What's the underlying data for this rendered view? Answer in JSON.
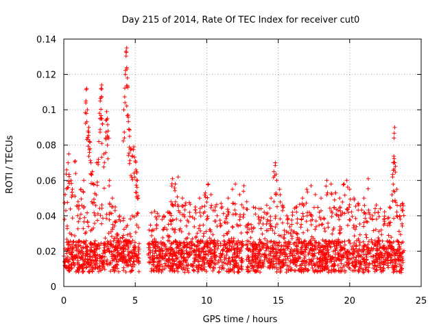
{
  "colors": {
    "series": "#ff0000",
    "grid": "#a0a0a0",
    "axis": "#000000"
  },
  "chart_data": {
    "type": "scatter",
    "title": "Day 215 of 2014, Rate Of TEC Index for receiver cut0",
    "xlabel": "GPS time / hours",
    "ylabel": "ROTI / TECUs",
    "xlim": [
      0,
      25
    ],
    "ylim": [
      0,
      0.14
    ],
    "grid": true,
    "marker": "+",
    "xticks": [
      0,
      5,
      10,
      15,
      20,
      25
    ],
    "yticks": [
      0,
      0.02,
      0.04,
      0.06,
      0.08,
      0.1,
      0.12,
      0.14
    ],
    "xtick_labels": [
      "0",
      "5",
      "10",
      "15",
      "20",
      "25"
    ],
    "ytick_labels": [
      "0",
      "0.02",
      "0.04",
      "0.06",
      "0.08",
      "0.1",
      "0.12",
      "0.14"
    ],
    "series": [
      {
        "name": "ROTI",
        "points": [
          [
            0.1,
            0.052
          ],
          [
            0.2,
            0.066
          ],
          [
            0.3,
            0.07
          ],
          [
            0.35,
            0.075
          ],
          [
            0.5,
            0.06
          ],
          [
            0.6,
            0.055
          ],
          [
            0.8,
            0.071
          ],
          [
            1.0,
            0.048
          ],
          [
            1.2,
            0.055
          ],
          [
            1.4,
            0.06
          ],
          [
            1.55,
            0.105
          ],
          [
            1.6,
            0.112
          ],
          [
            1.65,
            0.1
          ],
          [
            1.7,
            0.088
          ],
          [
            1.75,
            0.09
          ],
          [
            1.8,
            0.082
          ],
          [
            1.9,
            0.07
          ],
          [
            2.0,
            0.065
          ],
          [
            2.1,
            0.058
          ],
          [
            2.3,
            0.07
          ],
          [
            2.45,
            0.082
          ],
          [
            2.5,
            0.098
          ],
          [
            2.55,
            0.105
          ],
          [
            2.6,
            0.112
          ],
          [
            2.65,
            0.114
          ],
          [
            2.7,
            0.092
          ],
          [
            2.8,
            0.075
          ],
          [
            2.95,
            0.094
          ],
          [
            3.0,
            0.099
          ],
          [
            3.05,
            0.095
          ],
          [
            3.1,
            0.088
          ],
          [
            3.2,
            0.06
          ],
          [
            3.4,
            0.05
          ],
          [
            3.6,
            0.045
          ],
          [
            3.9,
            0.04
          ],
          [
            4.2,
            0.1
          ],
          [
            4.3,
            0.12
          ],
          [
            4.35,
            0.133
          ],
          [
            4.4,
            0.135
          ],
          [
            4.45,
            0.118
          ],
          [
            4.5,
            0.097
          ],
          [
            4.55,
            0.089
          ],
          [
            4.6,
            0.085
          ],
          [
            4.7,
            0.078
          ],
          [
            4.8,
            0.074
          ],
          [
            4.9,
            0.079
          ],
          [
            5.0,
            0.071
          ],
          [
            5.05,
            0.066
          ],
          [
            5.1,
            0.065
          ],
          [
            5.15,
            0.06
          ],
          [
            5.2,
            0.05
          ],
          [
            6.2,
            0.032
          ],
          [
            6.5,
            0.035
          ],
          [
            7.0,
            0.04
          ],
          [
            7.5,
            0.048
          ],
          [
            7.6,
            0.061
          ],
          [
            7.8,
            0.058
          ],
          [
            8.0,
            0.062
          ],
          [
            8.3,
            0.05
          ],
          [
            8.5,
            0.046
          ],
          [
            8.8,
            0.042
          ],
          [
            9.2,
            0.045
          ],
          [
            9.5,
            0.05
          ],
          [
            9.9,
            0.053
          ],
          [
            10.1,
            0.058
          ],
          [
            10.3,
            0.052
          ],
          [
            10.6,
            0.045
          ],
          [
            11.0,
            0.047
          ],
          [
            11.5,
            0.05
          ],
          [
            11.8,
            0.055
          ],
          [
            12.0,
            0.058
          ],
          [
            12.3,
            0.052
          ],
          [
            12.6,
            0.057
          ],
          [
            12.8,
            0.048
          ],
          [
            13.1,
            0.035
          ],
          [
            13.4,
            0.041
          ],
          [
            13.8,
            0.044
          ],
          [
            14.2,
            0.046
          ],
          [
            14.5,
            0.05
          ],
          [
            14.7,
            0.065
          ],
          [
            14.8,
            0.07
          ],
          [
            14.9,
            0.06
          ],
          [
            15.1,
            0.055
          ],
          [
            15.3,
            0.046
          ],
          [
            15.6,
            0.04
          ],
          [
            16.0,
            0.042
          ],
          [
            16.3,
            0.045
          ],
          [
            16.7,
            0.05
          ],
          [
            17.0,
            0.055
          ],
          [
            17.3,
            0.057
          ],
          [
            17.6,
            0.052
          ],
          [
            18.0,
            0.05
          ],
          [
            18.4,
            0.06
          ],
          [
            18.7,
            0.058
          ],
          [
            19.0,
            0.053
          ],
          [
            19.3,
            0.05
          ],
          [
            19.6,
            0.058
          ],
          [
            19.8,
            0.06
          ],
          [
            20.0,
            0.055
          ],
          [
            20.3,
            0.05
          ],
          [
            20.6,
            0.047
          ],
          [
            21.0,
            0.05
          ],
          [
            21.3,
            0.061
          ],
          [
            21.6,
            0.04
          ],
          [
            22.0,
            0.042
          ],
          [
            22.4,
            0.038
          ],
          [
            22.8,
            0.045
          ],
          [
            23.0,
            0.062
          ],
          [
            23.05,
            0.07
          ],
          [
            23.1,
            0.084
          ],
          [
            23.15,
            0.09
          ],
          [
            23.2,
            0.068
          ],
          [
            23.3,
            0.055
          ],
          [
            23.5,
            0.04
          ],
          [
            23.7,
            0.047
          ]
        ]
      }
    ],
    "band": {
      "gaps": [
        [
          5.3,
          5.9
        ],
        [
          12.55,
          12.75
        ],
        [
          13.05,
          13.15
        ]
      ],
      "segments": [
        {
          "x": [
            0,
            1.5
          ],
          "base": [
            0.004,
            0.036
          ]
        },
        {
          "x": [
            1.5,
            3.3
          ],
          "base": [
            0.004,
            0.045
          ]
        },
        {
          "x": [
            3.3,
            5.3
          ],
          "base": [
            0.004,
            0.03
          ]
        },
        {
          "x": [
            5.9,
            7.5
          ],
          "base": [
            0.004,
            0.033
          ]
        },
        {
          "x": [
            7.5,
            12.55
          ],
          "base": [
            0.004,
            0.038
          ]
        },
        {
          "x": [
            12.75,
            13.05
          ],
          "base": [
            0.004,
            0.03
          ]
        },
        {
          "x": [
            13.15,
            23.8
          ],
          "base": [
            0.004,
            0.038
          ]
        }
      ]
    }
  }
}
